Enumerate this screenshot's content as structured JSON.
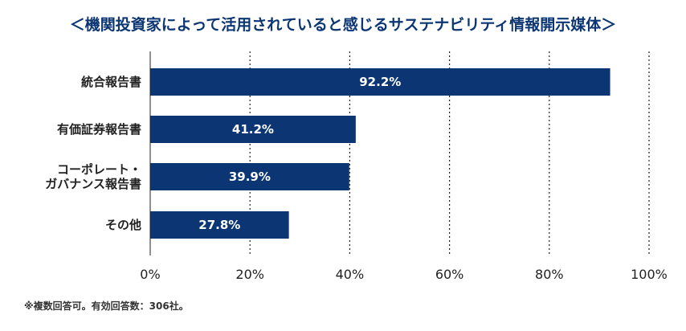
{
  "chart_data": {
    "type": "bar",
    "orientation": "horizontal",
    "title": "＜機関投資家によって活用されていると感じるサステナビリティ情報開示媒体＞",
    "categories": [
      [
        "統合報告書"
      ],
      [
        "有価証券報告書"
      ],
      [
        "コーポレート・",
        "ガバナンス報告書"
      ],
      [
        "その他"
      ]
    ],
    "values": [
      92.2,
      41.2,
      39.9,
      27.8
    ],
    "value_labels": [
      "92.2%",
      "41.2%",
      "39.9%",
      "27.8%"
    ],
    "xlim": [
      0,
      100
    ],
    "x_ticks": [
      0,
      20,
      40,
      60,
      80,
      100
    ],
    "x_tick_labels": [
      "0%",
      "20%",
      "40%",
      "60%",
      "80%",
      "100%"
    ],
    "grid": true,
    "bar_color": "#0b3673",
    "title_color": "#0b3673",
    "note": "※複数回答可。有効回答数：306社。"
  }
}
